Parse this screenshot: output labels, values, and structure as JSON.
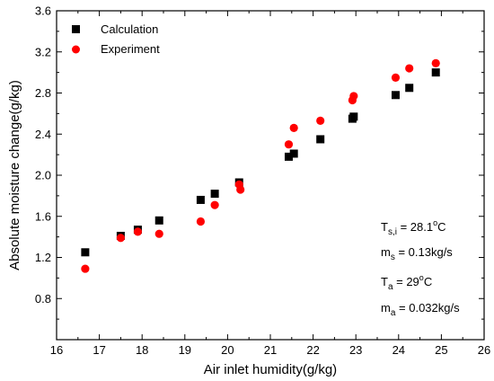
{
  "chart_data": {
    "type": "scatter",
    "xlabel": "Air inlet humidity(g/kg)",
    "ylabel": "Absolute moisture change(g/kg)",
    "xlim": [
      16,
      26
    ],
    "ylim": [
      0.4,
      3.6
    ],
    "xticks": [
      16,
      17,
      18,
      19,
      20,
      21,
      22,
      23,
      24,
      25,
      26
    ],
    "yticks": [
      0.8,
      1.2,
      1.6,
      2.0,
      2.4,
      2.8,
      3.2,
      3.6
    ],
    "ytick_labels": [
      "0.8",
      "1.2",
      "1.6",
      "2.0",
      "2.4",
      "2.8",
      "3.2",
      "3.6"
    ],
    "grid": false,
    "legend_position": "top-left",
    "series": [
      {
        "name": "Calculation",
        "marker": "square",
        "color": "#000000",
        "points": [
          [
            16.67,
            1.25
          ],
          [
            17.5,
            1.41
          ],
          [
            17.9,
            1.47
          ],
          [
            18.4,
            1.56
          ],
          [
            19.37,
            1.76
          ],
          [
            19.7,
            1.82
          ],
          [
            20.27,
            1.93
          ],
          [
            21.43,
            2.18
          ],
          [
            21.55,
            2.21
          ],
          [
            22.17,
            2.35
          ],
          [
            22.92,
            2.55
          ],
          [
            22.95,
            2.57
          ],
          [
            23.93,
            2.78
          ],
          [
            24.25,
            2.85
          ],
          [
            24.87,
            3.0
          ]
        ]
      },
      {
        "name": "Experiment",
        "marker": "circle",
        "color": "#ff0000",
        "points": [
          [
            16.67,
            1.09
          ],
          [
            17.5,
            1.39
          ],
          [
            17.9,
            1.45
          ],
          [
            18.4,
            1.43
          ],
          [
            19.37,
            1.55
          ],
          [
            19.7,
            1.71
          ],
          [
            20.27,
            1.91
          ],
          [
            20.3,
            1.86
          ],
          [
            21.43,
            2.3
          ],
          [
            21.55,
            2.46
          ],
          [
            22.17,
            2.53
          ],
          [
            22.92,
            2.73
          ],
          [
            22.95,
            2.77
          ],
          [
            23.93,
            2.95
          ],
          [
            24.25,
            3.04
          ],
          [
            24.87,
            3.09
          ]
        ]
      }
    ],
    "annotations": [
      {
        "base": "T",
        "sub": "s,i",
        "rest": " = 28.1",
        "sup": "o",
        "tail": "C"
      },
      {
        "base": "m",
        "sub": "s",
        "rest": " = 0.13kg/s",
        "sup": "",
        "tail": ""
      },
      {
        "base": "T",
        "sub": "a",
        "rest": "  = 29",
        "sup": "o",
        "tail": "C"
      },
      {
        "base": "m",
        "sub": "a",
        "rest": " = 0.032kg/s",
        "sup": "",
        "tail": ""
      }
    ]
  }
}
